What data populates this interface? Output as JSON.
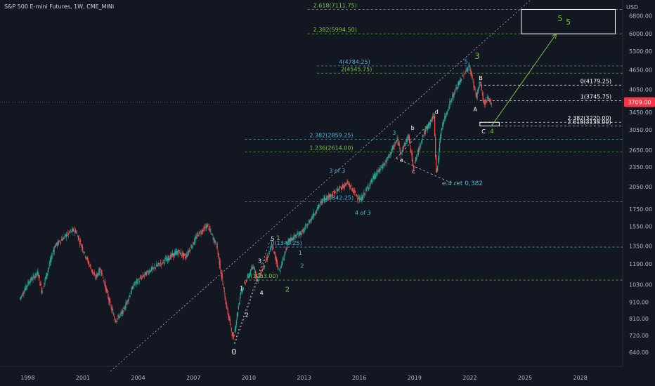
{
  "header": {
    "title": "S&P 500 E-mini Futures, 1W, CME_MINI"
  },
  "colors": {
    "background": "#131722",
    "up": "#26a69a",
    "down": "#ef5350",
    "price_tag": "#f23645",
    "fib_green": "#76c442",
    "fib_cyan": "#4fb3d9",
    "wave_white": "#ffffff"
  },
  "chart_data": {
    "type": "candlestick",
    "currency_label": "USD",
    "y_scale": "log",
    "ylim": [
      580,
      7600
    ],
    "xlim": [
      1996.5,
      2030.3
    ],
    "y_ticks": [
      "6800.00",
      "6000.00",
      "5300.00",
      "4650.00",
      "4050.00",
      "3450.00",
      "3050.00",
      "2650.00",
      "2350.00",
      "2050.00",
      "1750.00",
      "1550.00",
      "1350.00",
      "1190.00",
      "1030.00",
      "910.00",
      "810.00",
      "720.00",
      "640.00"
    ],
    "x_ticks": [
      "1998",
      "2001",
      "2004",
      "2007",
      "2010",
      "2013",
      "2016",
      "2019",
      "2022",
      "2025",
      "2028"
    ],
    "last_price": "3709.00",
    "last_price_value": 3709,
    "price_path": [
      [
        1997.6,
        930
      ],
      [
        1998.1,
        1050
      ],
      [
        1998.6,
        1120
      ],
      [
        1998.8,
        980
      ],
      [
        1999.5,
        1350
      ],
      [
        2000.2,
        1470
      ],
      [
        2000.6,
        1520
      ],
      [
        2001.2,
        1250
      ],
      [
        2001.7,
        1080
      ],
      [
        2002.0,
        1150
      ],
      [
        2002.5,
        900
      ],
      [
        2002.8,
        800
      ],
      [
        2003.2,
        850
      ],
      [
        2003.8,
        1030
      ],
      [
        2004.5,
        1120
      ],
      [
        2005.3,
        1200
      ],
      [
        2006.2,
        1300
      ],
      [
        2006.6,
        1250
      ],
      [
        2007.3,
        1470
      ],
      [
        2007.8,
        1560
      ],
      [
        2008.3,
        1350
      ],
      [
        2008.8,
        900
      ],
      [
        2009.2,
        700
      ],
      [
        2009.6,
        980
      ],
      [
        2010.3,
        1180
      ],
      [
        2010.5,
        1050
      ],
      [
        2011.3,
        1350
      ],
      [
        2011.7,
        1130
      ],
      [
        2012.2,
        1400
      ],
      [
        2013.0,
        1500
      ],
      [
        2014.0,
        1850
      ],
      [
        2015.4,
        2100
      ],
      [
        2016.1,
        1860
      ],
      [
        2016.8,
        2180
      ],
      [
        2017.5,
        2450
      ],
      [
        2018.1,
        2850
      ],
      [
        2018.3,
        2600
      ],
      [
        2018.7,
        2930
      ],
      [
        2018.98,
        2350
      ],
      [
        2019.5,
        2950
      ],
      [
        2020.1,
        3380
      ],
      [
        2020.22,
        2200
      ],
      [
        2020.5,
        3100
      ],
      [
        2021.0,
        3750
      ],
      [
        2021.5,
        4300
      ],
      [
        2022.0,
        4800
      ],
      [
        2022.4,
        3850
      ],
      [
        2022.6,
        4300
      ],
      [
        2022.8,
        3650
      ],
      [
        2023.0,
        3800
      ],
      [
        2023.2,
        3709
      ]
    ],
    "fib_levels": [
      {
        "label": "2.618(7111.75)",
        "value": 7111.75,
        "color": "#76c442",
        "x_start": 2013.2,
        "label_x": 2013.5
      },
      {
        "label": "2.382(5994.50)",
        "value": 5994.5,
        "color": "#76c442",
        "x_start": 2013.2,
        "label_x": 2013.5
      },
      {
        "label": "4(4784.25)",
        "value": 4784.25,
        "color": "#4fb3d9",
        "x_start": 2013.7,
        "label_x": 2014.9
      },
      {
        "label": "2(4545.75)",
        "value": 4545.75,
        "color": "#76c442",
        "x_start": 2013.7,
        "label_x": 2015.0
      },
      {
        "label": "0(4179.25)",
        "value": 4179.25,
        "color": "#ffffff",
        "x_start": 2022.55,
        "label_x": 2028.0
      },
      {
        "label": "1(3745.75)",
        "value": 3745.75,
        "color": "#ffffff",
        "x_start": 2022.55,
        "label_x": 2028.0
      },
      {
        "label": "2.382(3220.00)",
        "value": 3220,
        "color": "#ffffff",
        "x_start": 2022.55,
        "label_x": 2027.3
      },
      {
        "label": "2.618(3138.00)",
        "value": 3138,
        "color": "#ffffff",
        "x_start": 2022.55,
        "label_x": 2027.3
      },
      {
        "label": "2.382(2859.25)",
        "value": 2859.25,
        "color": "#4fb3d9",
        "x_start": 2009.8,
        "label_x": 2013.3
      },
      {
        "label": "1.236(2614.00)",
        "value": 2614,
        "color": "#76c442",
        "x_start": 2009.8,
        "label_x": 2013.3
      },
      {
        "label": "1(1842.25)",
        "value": 1842.25,
        "color": "#4fb3d9",
        "x_start": 2009.8,
        "label_x": 2014.0
      },
      {
        "label": "0(1340.25)",
        "value": 1340.25,
        "color": "#4fb3d9",
        "x_start": 2011.2,
        "label_x": 2011.2
      },
      {
        "label": "0(1063.00)",
        "value": 1063,
        "color": "#76c442",
        "x_start": 2009.8,
        "label_x": 2009.9
      }
    ],
    "wave_labels": [
      {
        "text": "0",
        "x": 2009.2,
        "y": 630,
        "color": "#ffffff",
        "size": 11
      },
      {
        "text": "1",
        "x": 2009.6,
        "y": 990,
        "color": "#ffffff",
        "size": 8
      },
      {
        "text": "2",
        "x": 2009.9,
        "y": 820,
        "color": "#ffffff",
        "size": 8
      },
      {
        "text": "3",
        "x": 2010.6,
        "y": 1200,
        "color": "#ffffff",
        "size": 8
      },
      {
        "text": "4",
        "x": 2010.7,
        "y": 960,
        "color": "#ffffff",
        "size": 8
      },
      {
        "text": "5",
        "x": 2011.3,
        "y": 1400,
        "color": "#ffffff",
        "size": 8
      },
      {
        "text": "1",
        "x": 2011.6,
        "y": 1410,
        "color": "#76c442",
        "size": 9
      },
      {
        "text": "2",
        "x": 2012.1,
        "y": 980,
        "color": "#76c442",
        "size": 10
      },
      {
        "text": "1",
        "x": 2012.8,
        "y": 1270,
        "color": "#4fb3d9",
        "size": 8
      },
      {
        "text": "2",
        "x": 2012.9,
        "y": 1160,
        "color": "#4fb3d9",
        "size": 8
      },
      {
        "text": "3 of 3",
        "x": 2014.8,
        "y": 2260,
        "color": "#4fb3d9",
        "size": 8
      },
      {
        "text": "4 of 3",
        "x": 2016.2,
        "y": 1680,
        "color": "#4fb3d9",
        "size": 8
      },
      {
        "text": "3",
        "x": 2017.9,
        "y": 2950,
        "color": "#4fb3d9",
        "size": 8
      },
      {
        "text": "a",
        "x": 2018.3,
        "y": 2440,
        "color": "#ffffff",
        "size": 8
      },
      {
        "text": "b",
        "x": 2018.9,
        "y": 3050,
        "color": "#ffffff",
        "size": 8
      },
      {
        "text": "c",
        "x": 2018.95,
        "y": 2250,
        "color": "#ffffff",
        "size": 8
      },
      {
        "text": "d",
        "x": 2020.2,
        "y": 3420,
        "color": "#ffffff",
        "size": 8
      },
      {
        "text": "e.4 ret 0,382",
        "x": 2021.6,
        "y": 2070,
        "color": "#4fb3d9",
        "size": 9
      },
      {
        "text": "5",
        "x": 2021.8,
        "y": 4870,
        "color": "#4fb3d9",
        "size": 8
      },
      {
        "text": "3",
        "x": 2022.4,
        "y": 5020,
        "color": "#76c442",
        "size": 12
      },
      {
        "text": "B",
        "x": 2022.6,
        "y": 4330,
        "color": "#ffffff",
        "size": 8
      },
      {
        "text": "A",
        "x": 2022.3,
        "y": 3480,
        "color": "#ffffff",
        "size": 8
      },
      {
        "text": "C",
        "x": 2022.75,
        "y": 2980,
        "color": "#ffffff",
        "size": 8
      },
      {
        "text": ".4",
        "x": 2023.15,
        "y": 2980,
        "color": "#76c442",
        "size": 9
      },
      {
        "text": "5",
        "x": 2026.9,
        "y": 6550,
        "color": "#76c442",
        "size": 11
      }
    ],
    "target_box": {
      "x0": 2024.8,
      "x1": 2029.9,
      "y0": 5994.5,
      "y1": 7111.75,
      "label": "5"
    },
    "support_box": {
      "x0": 2022.55,
      "x1": 2023.6,
      "y0": 3138,
      "y1": 3220
    },
    "arrow": {
      "x0": 2023.2,
      "y0": 3150,
      "x1": 2026.7,
      "y1": 5994.5
    },
    "channel_line": {
      "x0": 2002.5,
      "y0": 560,
      "x1": 2025.3,
      "y1": 7600
    },
    "fan_lines": [
      {
        "x0": 2009.2,
        "y0": 680,
        "x1": 2011.2,
        "y1": 1420
      },
      {
        "x0": 2009.25,
        "y0": 680,
        "x1": 2010.9,
        "y1": 1240
      }
    ],
    "triangle": [
      {
        "x0": 2018.0,
        "y0": 2500,
        "x1": 2020.2,
        "y1": 3380
      },
      {
        "x0": 2018.0,
        "y0": 2500,
        "x1": 2021.2,
        "y1": 2080
      }
    ]
  }
}
